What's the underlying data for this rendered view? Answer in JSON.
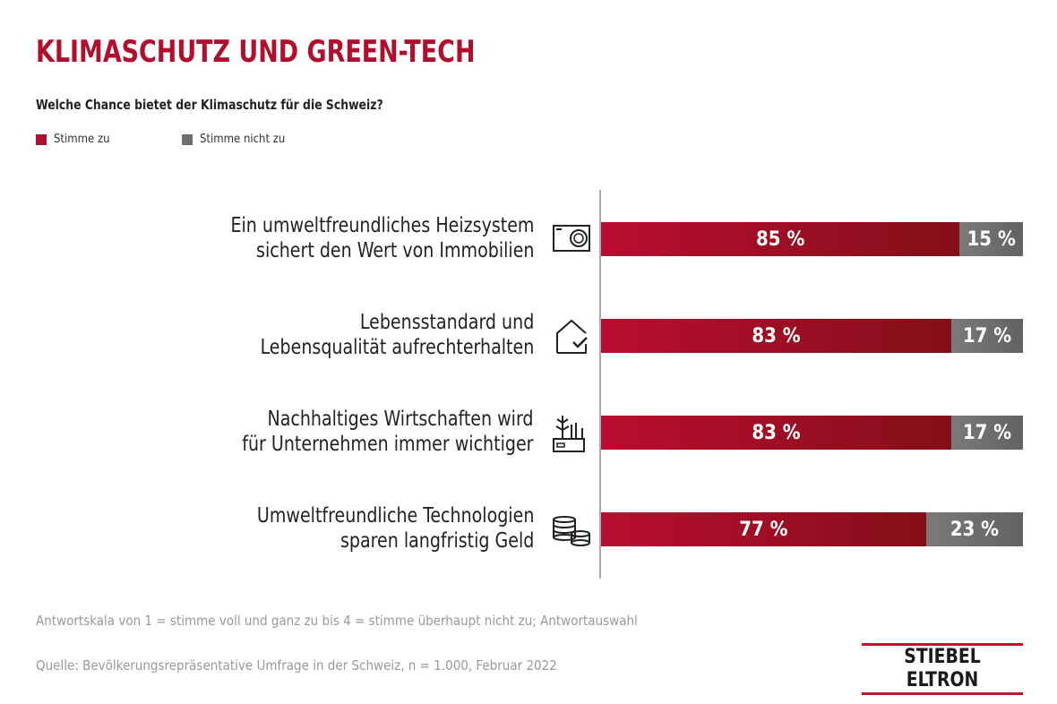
{
  "chart_data": {
    "type": "bar",
    "orientation": "horizontal-stacked",
    "title": "KLIMASCHUTZ UND GREEN-TECH",
    "subtitle": "Welche Chance bietet der Klimaschutz für die Schweiz?",
    "legend": [
      {
        "name": "Stimme zu",
        "color": "#b0102e"
      },
      {
        "name": "Stimme nicht zu",
        "color": "#6f6f6f"
      }
    ],
    "legend_position": "top-left",
    "categories": [
      [
        "Ein umweltfreundliches Heizsystem",
        "sichert den Wert von Immobilien"
      ],
      [
        "Lebensstandard und",
        "Lebensqualität aufrechterhalten"
      ],
      [
        "Nachhaltiges Wirtschaften wird",
        "für Unternehmen immer wichtiger"
      ],
      [
        "Umweltfreundliche Technologien",
        "sparen langfristig Geld"
      ]
    ],
    "icons": [
      "heat-pump-icon",
      "house-check-icon",
      "plants-factory-icon",
      "coins-icon"
    ],
    "series": [
      {
        "name": "Stimme zu",
        "values": [
          85,
          83,
          83,
          77
        ]
      },
      {
        "name": "Stimme nicht zu",
        "values": [
          15,
          17,
          17,
          23
        ]
      }
    ],
    "value_suffix": " %",
    "xlim": [
      0,
      100
    ]
  },
  "footnotes": {
    "scale": "Antwortskala von 1 = stimme voll und ganz zu bis 4 = stimme überhaupt nicht zu; Antwortauswahl",
    "source": "Quelle: Bevölkerungsrepräsentative Umfrage in der Schweiz, n = 1.000, Februar 2022"
  },
  "logo": "STIEBEL ELTRON"
}
